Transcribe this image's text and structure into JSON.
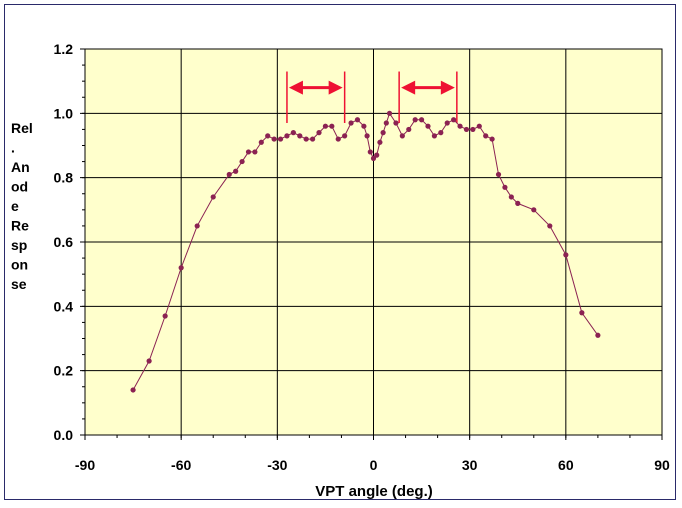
{
  "chart_data": {
    "type": "line",
    "title": "",
    "xlabel": "VPT angle (deg.)",
    "ylabel_lines": [
      "Rel",
      ".",
      "An",
      "od",
      "e",
      "Re",
      "sp",
      "on",
      "se"
    ],
    "xlim": [
      -90,
      90
    ],
    "ylim": [
      0.0,
      1.2
    ],
    "x_ticks": [
      -90,
      -60,
      -30,
      0,
      30,
      60,
      90
    ],
    "y_ticks": [
      0.0,
      0.2,
      0.4,
      0.6,
      0.8,
      1.0,
      1.2
    ],
    "x_tick_labels": [
      "-90",
      "-60",
      "-30",
      "0",
      "30",
      "60",
      "90"
    ],
    "y_tick_labels": [
      "0.0",
      "0.2",
      "0.4",
      "0.6",
      "0.8",
      "1.0",
      "1.2"
    ],
    "grid": true,
    "plot_background": "#ffffcc",
    "series": [
      {
        "color": "#8b2252",
        "x": [
          -75,
          -70,
          -65,
          -60,
          -55,
          -50,
          -45,
          -43,
          -41,
          -39,
          -37,
          -35,
          -33,
          -31,
          -29,
          -27,
          -25,
          -23,
          -21,
          -19,
          -17,
          -15,
          -13,
          -11,
          -9,
          -7,
          -5,
          -3,
          -2,
          -1,
          0,
          1,
          2,
          3,
          4,
          5,
          7,
          9,
          11,
          13,
          15,
          17,
          19,
          21,
          23,
          25,
          27,
          29,
          31,
          33,
          35,
          37,
          39,
          41,
          43,
          45,
          50,
          55,
          60,
          65,
          70
        ],
        "y": [
          0.14,
          0.23,
          0.37,
          0.52,
          0.65,
          0.74,
          0.81,
          0.82,
          0.85,
          0.88,
          0.88,
          0.91,
          0.93,
          0.92,
          0.92,
          0.93,
          0.94,
          0.93,
          0.92,
          0.92,
          0.94,
          0.96,
          0.96,
          0.92,
          0.93,
          0.97,
          0.98,
          0.96,
          0.93,
          0.88,
          0.86,
          0.87,
          0.91,
          0.94,
          0.97,
          1.0,
          0.97,
          0.93,
          0.95,
          0.98,
          0.98,
          0.96,
          0.93,
          0.94,
          0.97,
          0.98,
          0.96,
          0.95,
          0.95,
          0.96,
          0.93,
          0.92,
          0.81,
          0.77,
          0.74,
          0.72,
          0.7,
          0.65,
          0.56,
          0.38,
          0.31
        ]
      }
    ],
    "annotations": [
      {
        "type": "double-arrow",
        "x_from": -27,
        "x_to": -9,
        "y": 1.08,
        "color": "#ee1133"
      },
      {
        "type": "double-arrow",
        "x_from": 8,
        "x_to": 26,
        "y": 1.08,
        "color": "#ee1133"
      }
    ]
  }
}
